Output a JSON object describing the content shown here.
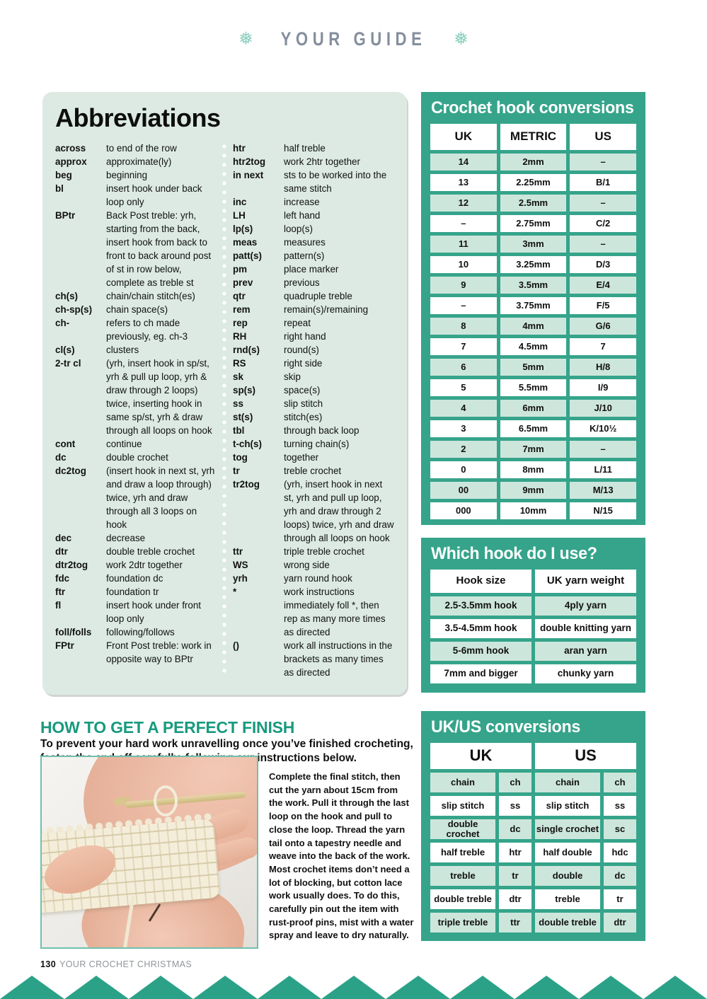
{
  "header": {
    "title": "YOUR GUIDE",
    "snowflake": "❅"
  },
  "abbreviations": {
    "title": "Abbreviations",
    "left": [
      {
        "term": "across",
        "def": "to end of the row"
      },
      {
        "term": "approx",
        "def": "approximate(ly)"
      },
      {
        "term": "beg",
        "def": "beginning"
      },
      {
        "term": "bl",
        "def": "insert hook under back loop only"
      },
      {
        "term": "BPtr",
        "def": "Back Post treble: yrh, starting from the back, insert hook from back to front to back around post of st in row below, complete as treble st"
      },
      {
        "term": "ch(s)",
        "def": "chain/chain stitch(es)"
      },
      {
        "term": "ch-sp(s)",
        "def": "chain space(s)"
      },
      {
        "term": "ch-",
        "def": "refers to ch made previously, eg. ch-3"
      },
      {
        "term": "cl(s)",
        "def": "clusters"
      },
      {
        "term": "2-tr cl",
        "def": "(yrh, insert hook in sp/st, yrh & pull up loop, yrh & draw through 2 loops) twice, inserting hook in same sp/st, yrh & draw through all loops on hook"
      },
      {
        "term": "cont",
        "def": "continue"
      },
      {
        "term": "dc",
        "def": "double crochet"
      },
      {
        "term": "dc2tog",
        "def": "(insert hook in next st, yrh and draw a loop through) twice, yrh and draw through all 3 loops on hook"
      },
      {
        "term": "dec",
        "def": "decrease"
      },
      {
        "term": "dtr",
        "def": "double treble crochet"
      },
      {
        "term": "dtr2tog",
        "def": "work 2dtr together"
      },
      {
        "term": "fdc",
        "def": "foundation dc"
      },
      {
        "term": "ftr",
        "def": "foundation tr"
      },
      {
        "term": "fl",
        "def": "insert hook under front loop only"
      },
      {
        "term": "foll/folls",
        "def": "following/follows"
      },
      {
        "term": "FPtr",
        "def": "Front Post treble: work in opposite way to BPtr"
      }
    ],
    "right": [
      {
        "term": "htr",
        "def": "half treble"
      },
      {
        "term": "htr2tog",
        "def": "work 2htr together"
      },
      {
        "term": "in next",
        "def": "sts to be worked into the same stitch"
      },
      {
        "term": "inc",
        "def": "increase"
      },
      {
        "term": "LH",
        "def": "left hand"
      },
      {
        "term": "lp(s)",
        "def": "loop(s)"
      },
      {
        "term": "meas",
        "def": "measures"
      },
      {
        "term": "patt(s)",
        "def": "pattern(s)"
      },
      {
        "term": "pm",
        "def": "place marker"
      },
      {
        "term": "prev",
        "def": "previous"
      },
      {
        "term": "qtr",
        "def": "quadruple treble"
      },
      {
        "term": "rem",
        "def": "remain(s)/remaining"
      },
      {
        "term": "rep",
        "def": "repeat"
      },
      {
        "term": "RH",
        "def": "right hand"
      },
      {
        "term": "rnd(s)",
        "def": "round(s)"
      },
      {
        "term": "RS",
        "def": "right side"
      },
      {
        "term": "sk",
        "def": "skip"
      },
      {
        "term": "sp(s)",
        "def": "space(s)"
      },
      {
        "term": "ss",
        "def": "slip stitch"
      },
      {
        "term": "st(s)",
        "def": "stitch(es)"
      },
      {
        "term": "tbl",
        "def": "through back loop"
      },
      {
        "term": "t-ch(s)",
        "def": "turning chain(s)"
      },
      {
        "term": "tog",
        "def": "together"
      },
      {
        "term": "tr",
        "def": "treble crochet"
      },
      {
        "term": "tr2tog",
        "def": "(yrh, insert hook in next st, yrh and pull up loop, yrh and draw through 2 loops) twice, yrh and draw through all loops on hook"
      },
      {
        "term": "ttr",
        "def": "triple treble crochet"
      },
      {
        "term": "WS",
        "def": "wrong side"
      },
      {
        "term": "yrh",
        "def": "yarn round hook"
      },
      {
        "term": "*",
        "def": "work instructions immediately foll *, then rep as many more times as directed"
      },
      {
        "term": "()",
        "def": "work all instructions in the brackets as many times as directed"
      }
    ]
  },
  "hook_conversions": {
    "title": "Crochet hook conversions",
    "headers": [
      "UK",
      "METRIC",
      "US"
    ],
    "rows": [
      [
        "14",
        "2mm",
        "–"
      ],
      [
        "13",
        "2.25mm",
        "B/1"
      ],
      [
        "12",
        "2.5mm",
        "–"
      ],
      [
        "–",
        "2.75mm",
        "C/2"
      ],
      [
        "11",
        "3mm",
        "–"
      ],
      [
        "10",
        "3.25mm",
        "D/3"
      ],
      [
        "9",
        "3.5mm",
        "E/4"
      ],
      [
        "–",
        "3.75mm",
        "F/5"
      ],
      [
        "8",
        "4mm",
        "G/6"
      ],
      [
        "7",
        "4.5mm",
        "7"
      ],
      [
        "6",
        "5mm",
        "H/8"
      ],
      [
        "5",
        "5.5mm",
        "I/9"
      ],
      [
        "4",
        "6mm",
        "J/10"
      ],
      [
        "3",
        "6.5mm",
        "K/10½"
      ],
      [
        "2",
        "7mm",
        "–"
      ],
      [
        "0",
        "8mm",
        "L/11"
      ],
      [
        "00",
        "9mm",
        "M/13"
      ],
      [
        "000",
        "10mm",
        "N/15"
      ]
    ]
  },
  "which_hook": {
    "title": "Which hook do I use?",
    "headers": [
      "Hook size",
      "UK yarn weight"
    ],
    "rows": [
      [
        "2.5-3.5mm hook",
        "4ply yarn"
      ],
      [
        "3.5-4.5mm hook",
        "double knitting yarn"
      ],
      [
        "5-6mm hook",
        "aran yarn"
      ],
      [
        "7mm and bigger",
        "chunky yarn"
      ]
    ]
  },
  "ukus_conversions": {
    "title": "UK/US conversions",
    "headers": [
      "UK",
      "US"
    ],
    "rows": [
      [
        "chain",
        "ch",
        "chain",
        "ch"
      ],
      [
        "slip stitch",
        "ss",
        "slip stitch",
        "ss"
      ],
      [
        "double crochet",
        "dc",
        "single crochet",
        "sc"
      ],
      [
        "half treble",
        "htr",
        "half double",
        "hdc"
      ],
      [
        "treble",
        "tr",
        "double",
        "dc"
      ],
      [
        "double treble",
        "dtr",
        "treble",
        "tr"
      ],
      [
        "triple treble",
        "ttr",
        "double treble",
        "dtr"
      ]
    ]
  },
  "finish": {
    "heading": "HOW TO GET A PERFECT FINISH",
    "intro": "To prevent your hard work unravelling once you’ve finished crocheting, fasten the end off carefully, following our instructions below.",
    "body": "Complete the final stitch, then cut the yarn about 15cm from the work. Pull it through the last loop on the hook and pull to close the loop. Thread the yarn tail onto a tapestry needle and weave into the back of the work. Most crochet items don’t need a lot of blocking, but cotton lace work usually does. To do this, carefully pin out the item with rust-proof pins, mist with a water spray and leave to dry naturally."
  },
  "footer": {
    "page": "130",
    "magazine": "YOUR CROCHET CHRISTMAS"
  },
  "colors": {
    "panel_teal": "#35a48a",
    "row_green": "#cde6dc",
    "box_mint": "#dceae3",
    "heading_teal": "#189a7e",
    "masthead_gray": "#848e9c",
    "snowflake_teal": "#8ed0c0"
  }
}
